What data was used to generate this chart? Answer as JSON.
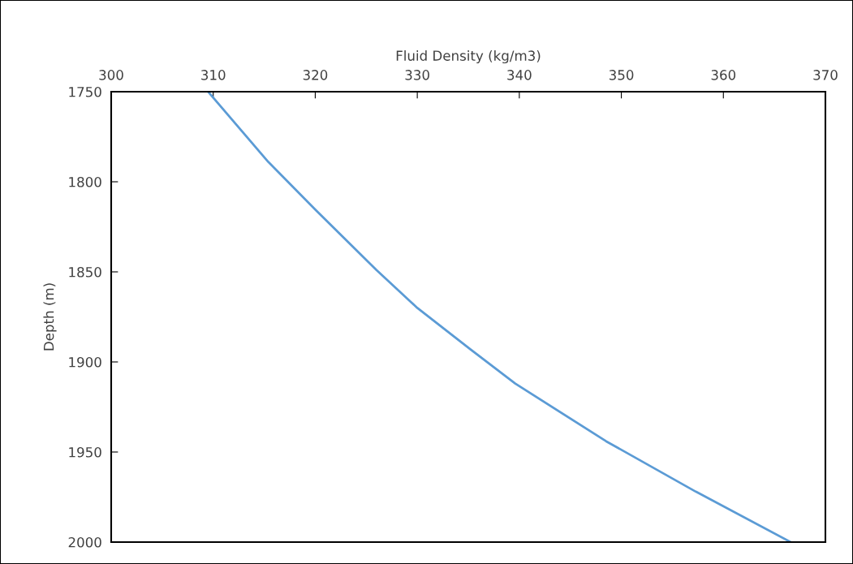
{
  "chart_data": {
    "type": "line",
    "xlabel": "Fluid Density (kg/m3)",
    "ylabel": "Depth (m)",
    "x": [
      309.5,
      315.4,
      320.1,
      326.0,
      330.0,
      335.2,
      339.6,
      348.5,
      357.3,
      366.6
    ],
    "series": [
      {
        "color": "#5b9bd5",
        "values": [
          1750,
          1789,
          1816,
          1849,
          1870,
          1893,
          1912,
          1944,
          1972,
          2000
        ]
      }
    ],
    "xlim": [
      300,
      370
    ],
    "xticks": [
      300,
      310,
      320,
      330,
      340,
      350,
      360,
      370
    ],
    "ylim": [
      2000,
      1750
    ],
    "yticks": [
      1750,
      1800,
      1850,
      1900,
      1950,
      2000
    ],
    "grid": false,
    "legend": false,
    "marker": "none",
    "line_style": "solid"
  }
}
